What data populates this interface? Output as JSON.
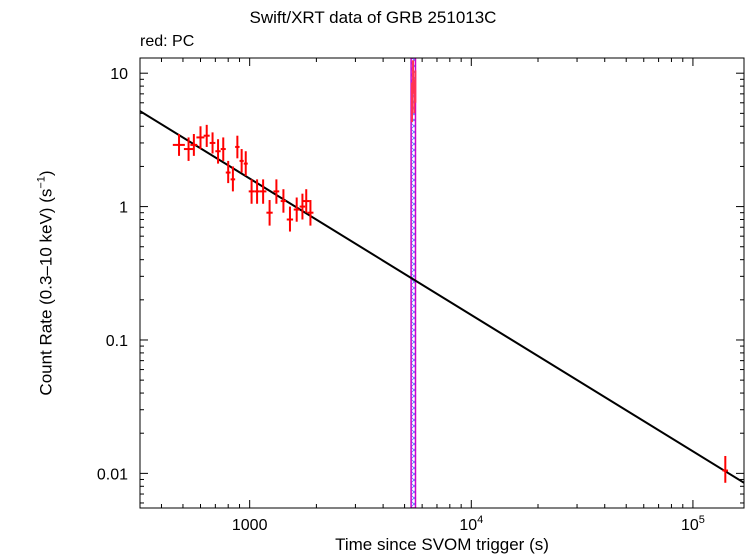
{
  "chart_data": {
    "type": "scatter",
    "title": "Swift/XRT data of GRB 251013C",
    "subtitle": "red: PC",
    "xlabel": "Time since SVOM trigger (s)",
    "ylabel_main": "Count Rate (0.3–10 keV) (s",
    "ylabel_sup": "−1",
    "ylabel_end": ")",
    "x_scale": "log",
    "y_scale": "log",
    "xlim": [
      320,
      170000
    ],
    "ylim": [
      0.0055,
      13
    ],
    "x_ticks": [
      {
        "value": 1000,
        "base": "1000",
        "exp": ""
      },
      {
        "value": 10000,
        "base": "10",
        "exp": "4"
      },
      {
        "value": 100000,
        "base": "10",
        "exp": "5"
      }
    ],
    "y_ticks": [
      {
        "value": 0.01,
        "label": "0.01"
      },
      {
        "value": 0.1,
        "label": "0.1"
      },
      {
        "value": 1,
        "label": "1"
      },
      {
        "value": 10,
        "label": "10"
      }
    ],
    "grid": false,
    "colors": {
      "data": "#ff0000",
      "fit": "#000000",
      "band": "#cc00cc",
      "band_hatch": "#5577ff",
      "flare": "#ff3355"
    },
    "series": [
      {
        "name": "PC",
        "color": "#ff0000",
        "points": [
          {
            "x": 480,
            "y": 2.9,
            "xerr": [
              30,
              30
            ],
            "yerr": [
              0.5,
              0.6
            ]
          },
          {
            "x": 530,
            "y": 2.7,
            "xerr": [
              25,
              25
            ],
            "yerr": [
              0.5,
              0.6
            ]
          },
          {
            "x": 560,
            "y": 2.9,
            "xerr": [
              20,
              20
            ],
            "yerr": [
              0.5,
              0.6
            ]
          },
          {
            "x": 600,
            "y": 3.3,
            "xerr": [
              25,
              25
            ],
            "yerr": [
              0.6,
              0.7
            ]
          },
          {
            "x": 640,
            "y": 3.4,
            "xerr": [
              20,
              20
            ],
            "yerr": [
              0.6,
              0.7
            ]
          },
          {
            "x": 680,
            "y": 3.0,
            "xerr": [
              20,
              20
            ],
            "yerr": [
              0.5,
              0.6
            ]
          },
          {
            "x": 720,
            "y": 2.6,
            "xerr": [
              20,
              20
            ],
            "yerr": [
              0.5,
              0.6
            ]
          },
          {
            "x": 760,
            "y": 2.7,
            "xerr": [
              20,
              20
            ],
            "yerr": [
              0.5,
              0.6
            ]
          },
          {
            "x": 800,
            "y": 1.8,
            "xerr": [
              20,
              20
            ],
            "yerr": [
              0.3,
              0.4
            ]
          },
          {
            "x": 840,
            "y": 1.6,
            "xerr": [
              20,
              20
            ],
            "yerr": [
              0.3,
              0.4
            ]
          },
          {
            "x": 880,
            "y": 2.8,
            "xerr": [
              20,
              20
            ],
            "yerr": [
              0.5,
              0.6
            ]
          },
          {
            "x": 920,
            "y": 2.2,
            "xerr": [
              20,
              20
            ],
            "yerr": [
              0.4,
              0.5
            ]
          },
          {
            "x": 960,
            "y": 2.1,
            "xerr": [
              20,
              20
            ],
            "yerr": [
              0.4,
              0.5
            ]
          },
          {
            "x": 1020,
            "y": 1.3,
            "xerr": [
              30,
              30
            ],
            "yerr": [
              0.25,
              0.3
            ]
          },
          {
            "x": 1080,
            "y": 1.3,
            "xerr": [
              30,
              30
            ],
            "yerr": [
              0.25,
              0.3
            ]
          },
          {
            "x": 1150,
            "y": 1.3,
            "xerr": [
              40,
              40
            ],
            "yerr": [
              0.25,
              0.3
            ]
          },
          {
            "x": 1230,
            "y": 0.9,
            "xerr": [
              40,
              40
            ],
            "yerr": [
              0.18,
              0.22
            ]
          },
          {
            "x": 1320,
            "y": 1.3,
            "xerr": [
              40,
              40
            ],
            "yerr": [
              0.25,
              0.3
            ]
          },
          {
            "x": 1420,
            "y": 1.1,
            "xerr": [
              40,
              40
            ],
            "yerr": [
              0.2,
              0.25
            ]
          },
          {
            "x": 1520,
            "y": 0.8,
            "xerr": [
              50,
              50
            ],
            "yerr": [
              0.15,
              0.2
            ]
          },
          {
            "x": 1630,
            "y": 0.95,
            "xerr": [
              50,
              50
            ],
            "yerr": [
              0.18,
              0.22
            ]
          },
          {
            "x": 1730,
            "y": 1.0,
            "xerr": [
              50,
              50
            ],
            "yerr": [
              0.2,
              0.25
            ]
          },
          {
            "x": 1800,
            "y": 1.1,
            "xerr": [
              60,
              60
            ],
            "yerr": [
              0.2,
              0.25
            ]
          },
          {
            "x": 1880,
            "y": 0.9,
            "xerr": [
              60,
              60
            ],
            "yerr": [
              0.18,
              0.22
            ]
          },
          {
            "x": 140000,
            "y": 0.0105,
            "xerr": [
              4000,
              4000
            ],
            "yerr": [
              0.002,
              0.003
            ]
          }
        ]
      }
    ],
    "fit_line": {
      "x": [
        320,
        170000
      ],
      "y": [
        5.2,
        0.0085
      ]
    },
    "highlight_band": {
      "x_range": [
        5350,
        5600
      ]
    },
    "flare_points": [
      {
        "x": 5400,
        "y": 5.5,
        "yerr": [
          1.2,
          3.0
        ]
      },
      {
        "x": 5460,
        "y": 9.0,
        "yerr": [
          2.0,
          3.5
        ]
      },
      {
        "x": 5530,
        "y": 6.5,
        "yerr": [
          1.5,
          2.5
        ]
      },
      {
        "x": 5590,
        "y": 8.0,
        "yerr": [
          2.0,
          2.5
        ]
      }
    ]
  }
}
